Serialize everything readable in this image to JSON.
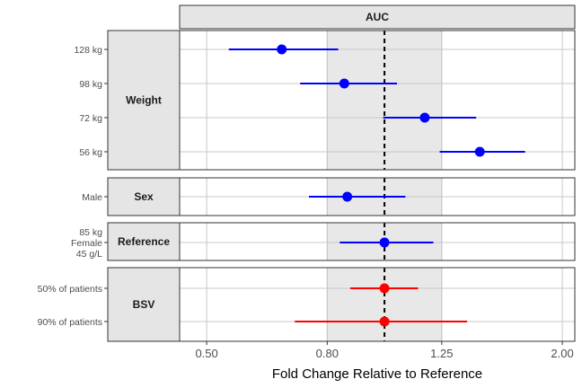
{
  "chart_data": {
    "type": "forest",
    "facet_column_label": "AUC",
    "xlabel": "Fold Change Relative to Reference",
    "x_scale": "log",
    "xlim": [
      0.45,
      2.1
    ],
    "x_ticks": [
      {
        "value": 0.5,
        "label": "0.50"
      },
      {
        "value": 0.8,
        "label": "0.80"
      },
      {
        "value": 1.25,
        "label": "1.25"
      },
      {
        "value": 2.0,
        "label": "2.00"
      }
    ],
    "reference_line": 1.0,
    "reference_band": [
      0.8,
      1.25
    ],
    "grid": true,
    "panels": [
      {
        "label": "Weight",
        "rows": [
          {
            "label": "128 kg",
            "estimate": 0.67,
            "lower": 0.545,
            "upper": 0.835,
            "color": "#0000ff"
          },
          {
            "label": "98 kg",
            "estimate": 0.855,
            "lower": 0.72,
            "upper": 1.05,
            "color": "#0000ff"
          },
          {
            "label": "72 kg",
            "estimate": 1.17,
            "lower": 0.995,
            "upper": 1.43,
            "color": "#0000ff"
          },
          {
            "label": "56 kg",
            "estimate": 1.45,
            "lower": 1.24,
            "upper": 1.73,
            "color": "#0000ff"
          }
        ]
      },
      {
        "label": "Sex",
        "rows": [
          {
            "label": "Male",
            "estimate": 0.865,
            "lower": 0.745,
            "upper": 1.085,
            "color": "#0000ff"
          }
        ]
      },
      {
        "label": "Reference",
        "rows": [
          {
            "label": "85 kg\nFemale\n45 g/L",
            "estimate": 1.0,
            "lower": 0.84,
            "upper": 1.21,
            "color": "#0000ff"
          }
        ]
      },
      {
        "label": "BSV",
        "rows": [
          {
            "label": "50% of patients",
            "estimate": 1.0,
            "lower": 0.875,
            "upper": 1.14,
            "color": "#ff0000"
          },
          {
            "label": "90% of patients",
            "estimate": 1.0,
            "lower": 0.705,
            "upper": 1.38,
            "color": "#ff0000"
          }
        ]
      }
    ]
  }
}
